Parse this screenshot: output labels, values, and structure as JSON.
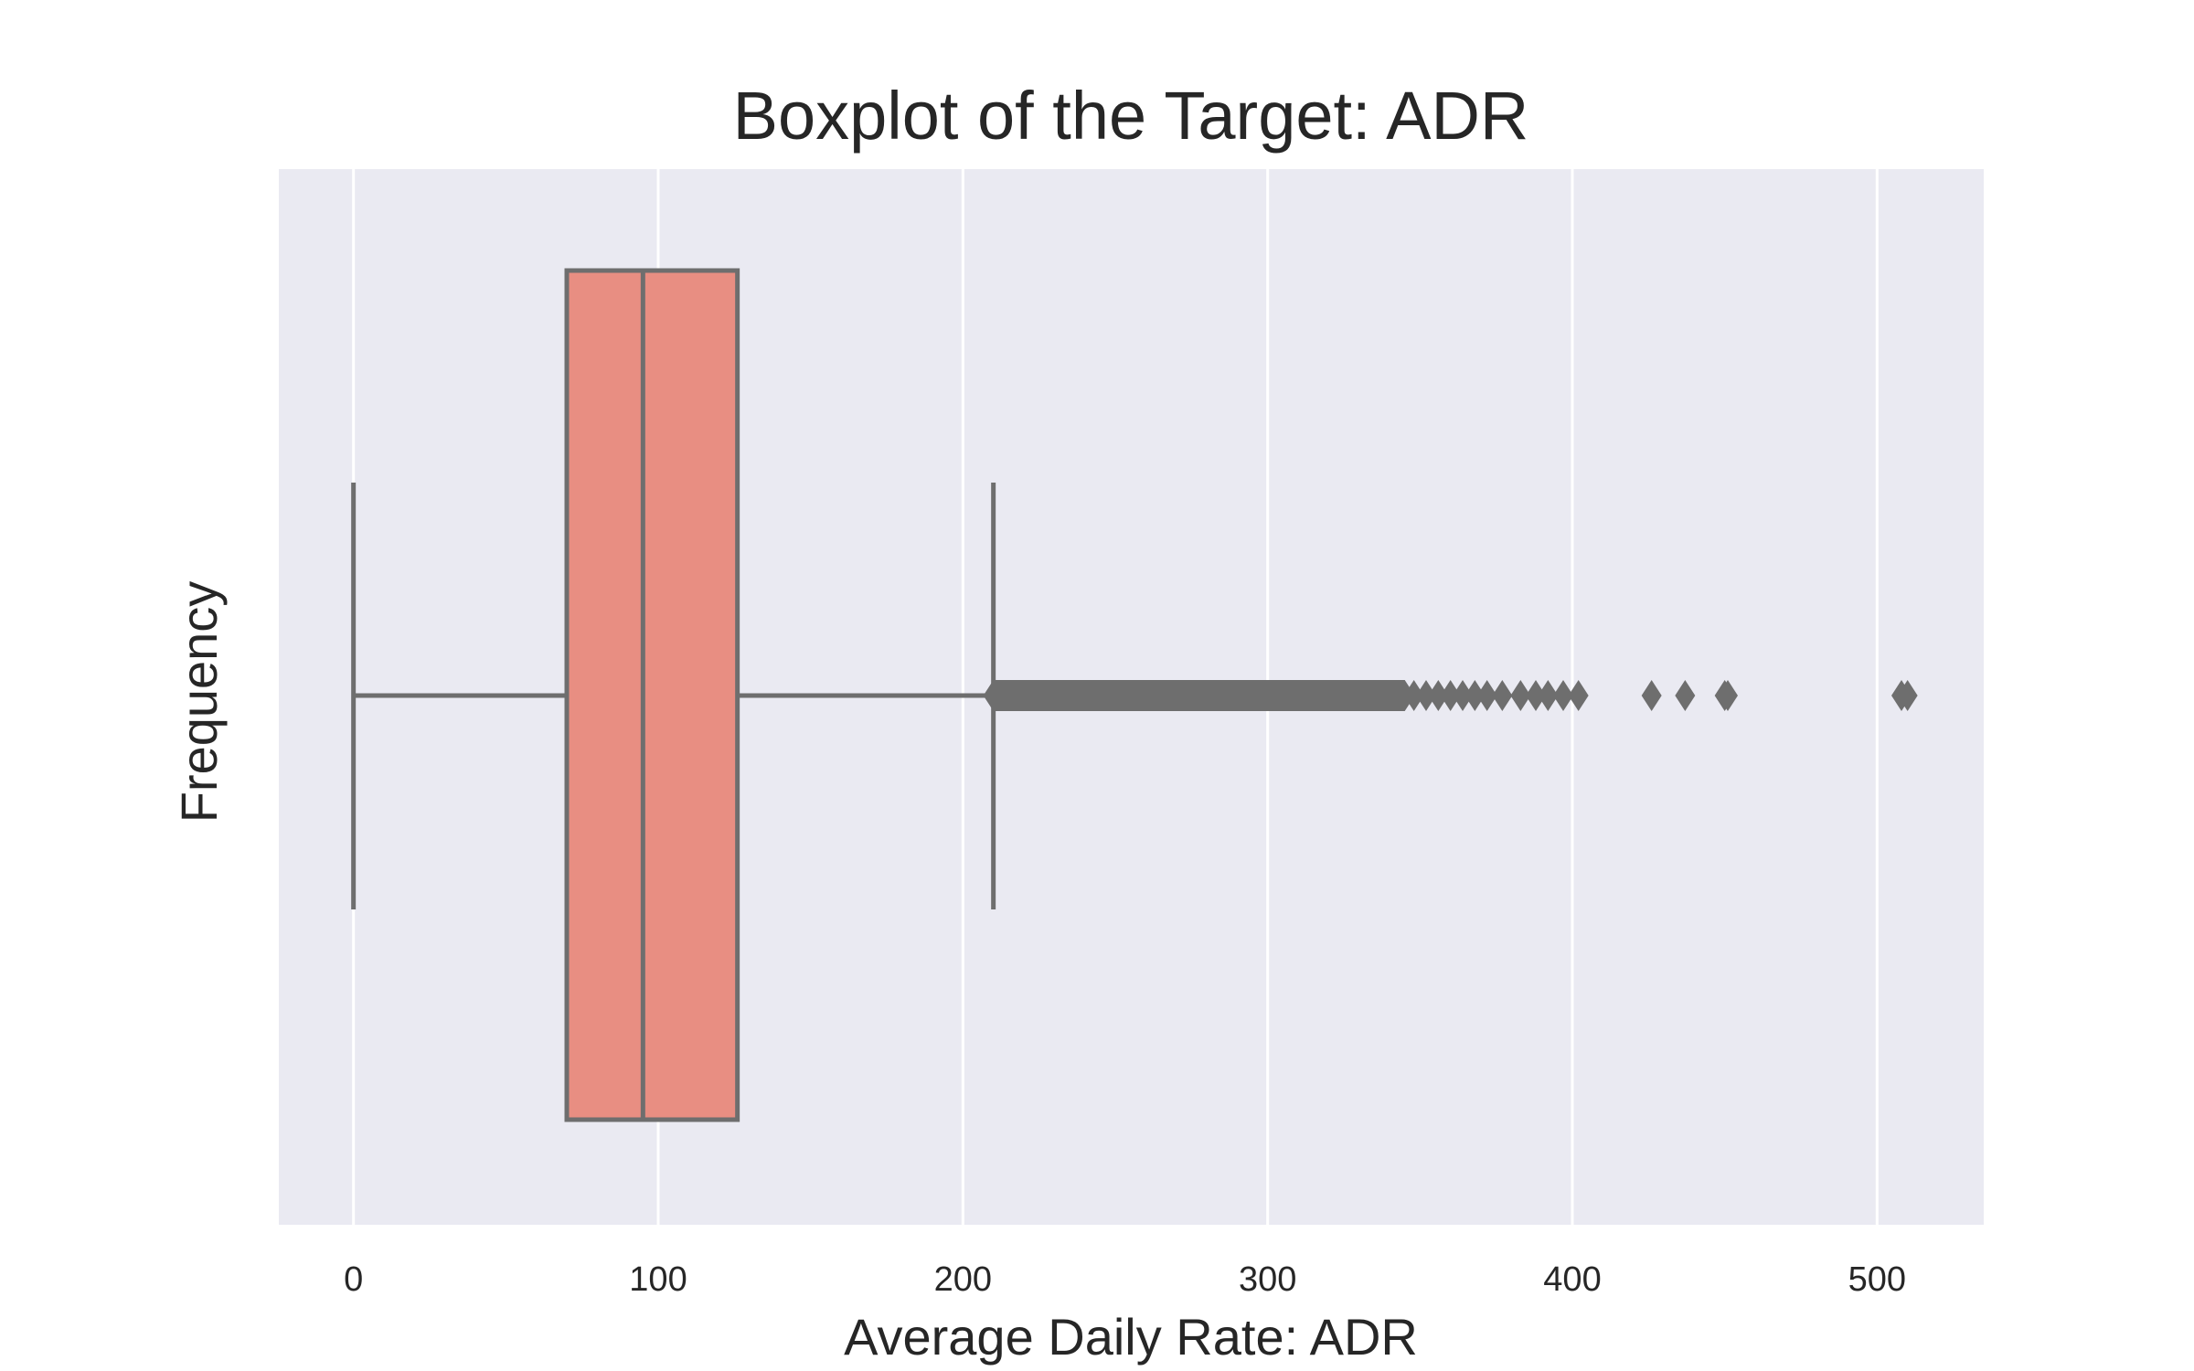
{
  "chart_data": {
    "type": "boxplot",
    "title": "Boxplot of the Target: ADR",
    "xlabel": "Average Daily Rate: ADR",
    "ylabel": "Frequency",
    "orientation": "horizontal",
    "xlim": [
      -24.5,
      535
    ],
    "xticks": [
      0,
      100,
      200,
      300,
      400,
      500
    ],
    "xtick_labels": [
      "0",
      "100",
      "200",
      "300",
      "400",
      "500"
    ],
    "grid": true,
    "box": {
      "whisker_low": 0,
      "q1": 70,
      "median": 95,
      "q3": 126,
      "whisker_high": 210
    },
    "outlier_range_dense": [
      210,
      345
    ],
    "outliers": [
      348,
      352,
      356,
      360,
      364,
      368,
      372,
      377,
      383,
      388,
      392,
      397,
      402,
      426,
      437,
      450,
      451,
      508,
      510
    ],
    "colors": {
      "box_fill": "#e88e82",
      "line": "#6e6e6e",
      "axes_bg": "#eaeaf2",
      "grid": "#ffffff"
    }
  }
}
